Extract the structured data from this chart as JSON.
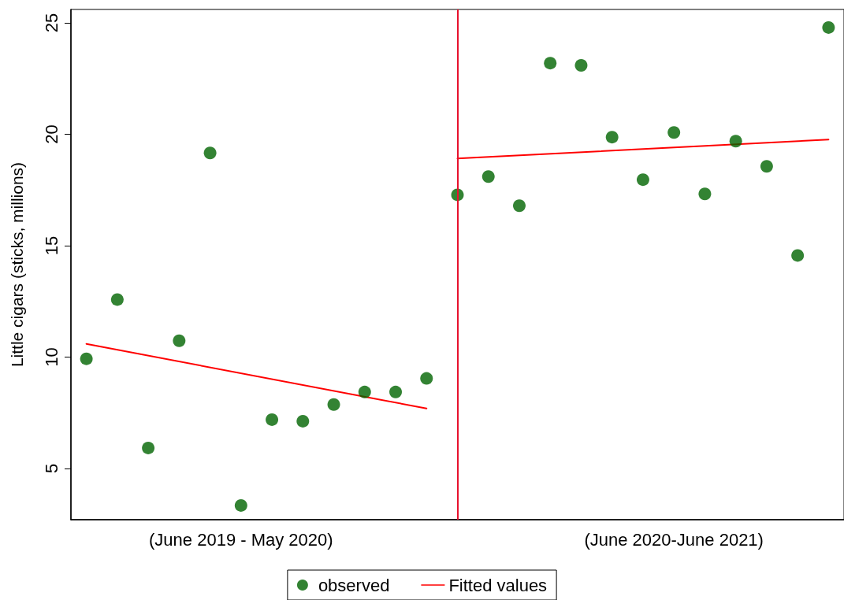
{
  "chart_data": {
    "type": "scatter",
    "ylabel": "Little cigars (sticks, millions)",
    "categories": [
      null,
      null,
      null,
      null,
      null,
      "(June 2019 - May 2020)",
      null,
      null,
      null,
      null,
      null,
      null,
      null,
      null,
      null,
      null,
      null,
      null,
      null,
      "(June 2020-June 2021)",
      null,
      null,
      null,
      null,
      null
    ],
    "ylim": [
      2.7,
      25.6
    ],
    "yticks": [
      5,
      10,
      15,
      20,
      25
    ],
    "grid": false,
    "legend": "bottom",
    "series": [
      {
        "name": "observed",
        "color": "#006400",
        "marker": "circle",
        "values": [
          9.92,
          12.58,
          5.92,
          10.73,
          19.16,
          3.34,
          7.19,
          7.12,
          7.87,
          8.43,
          8.43,
          9.04,
          17.28,
          18.1,
          16.79,
          23.19,
          23.09,
          19.87,
          17.96,
          20.08,
          17.32,
          19.69,
          18.56,
          14.56,
          24.79
        ]
      },
      {
        "name": "Fitted values",
        "type": "line",
        "color": "#ff0000",
        "line_style": "solid",
        "values": [
          10.59,
          null,
          null,
          null,
          null,
          null,
          null,
          null,
          null,
          null,
          null,
          7.69,
          null,
          null,
          null,
          null,
          null,
          null,
          null,
          null,
          null,
          null,
          null,
          null,
          null
        ]
      },
      {
        "type": "line",
        "color": "#ff0000",
        "line_style": "solid",
        "values": [
          null,
          null,
          null,
          null,
          null,
          null,
          null,
          null,
          null,
          null,
          null,
          null,
          18.91,
          null,
          null,
          null,
          null,
          null,
          null,
          null,
          null,
          null,
          null,
          null,
          19.76
        ]
      }
    ]
  }
}
